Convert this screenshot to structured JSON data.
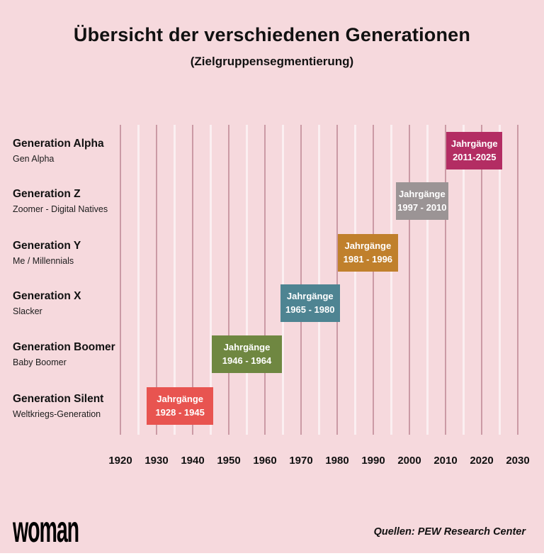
{
  "title": "Übersicht der verschiedenen Generationen",
  "subtitle": "(Zielgruppensegmentierung)",
  "footer": {
    "logo": "woman",
    "source": "Quellen: PEW Research Center"
  },
  "colors": {
    "background": "#f6d9dd",
    "grid_decade_line": "#cb9aa5",
    "grid_mid_line": "#fbeff1",
    "heading_text": "#111111",
    "bar_text": "#ffffff",
    "bottom_strip": "#ffffff"
  },
  "chart_data": {
    "type": "bar",
    "variant": "horizontal-timeline",
    "title": "Übersicht der verschiedenen Generationen",
    "subtitle": "(Zielgruppensegmentierung)",
    "x_axis": {
      "ticks": [
        1920,
        1930,
        1940,
        1950,
        1960,
        1970,
        1980,
        1990,
        2000,
        2010,
        2020,
        2030
      ],
      "range": [
        1920,
        2030
      ],
      "gridline_step_years": 5,
      "grid": "on"
    },
    "rows": [
      {
        "label": "Generation Alpha",
        "sublabel": "Gen Alpha",
        "bar_text_line1": "Jahrgänge",
        "bar_text_line2": "2011-2025",
        "start_year": 2011,
        "end_year": 2025,
        "color": "#b32d63"
      },
      {
        "label": "Generation Z",
        "sublabel": "Zoomer - Digital Natives",
        "bar_text_line1": "Jahrgänge",
        "bar_text_line2": "1997 - 2010",
        "start_year": 1997,
        "end_year": 2010,
        "color": "#9b9495"
      },
      {
        "label": "Generation Y",
        "sublabel": "Me / Millennials",
        "bar_text_line1": "Jahrgänge",
        "bar_text_line2": "1981 - 1996",
        "start_year": 1981,
        "end_year": 1996,
        "color": "#c0802c"
      },
      {
        "label": "Generation X",
        "sublabel": "Slacker",
        "bar_text_line1": "Jahrgänge",
        "bar_text_line2": "1965 - 1980",
        "start_year": 1965,
        "end_year": 1980,
        "color": "#4e8492"
      },
      {
        "label": "Generation Boomer",
        "sublabel": "Baby Boomer",
        "bar_text_line1": "Jahrgänge",
        "bar_text_line2": "1946 - 1964",
        "start_year": 1946,
        "end_year": 1964,
        "color": "#6f8741"
      },
      {
        "label": "Generation Silent",
        "sublabel": "Weltkriegs-Generation",
        "bar_text_line1": "Jahrgänge",
        "bar_text_line2": "1928 - 1945",
        "start_year": 1928,
        "end_year": 1945,
        "color": "#e85450"
      }
    ]
  }
}
